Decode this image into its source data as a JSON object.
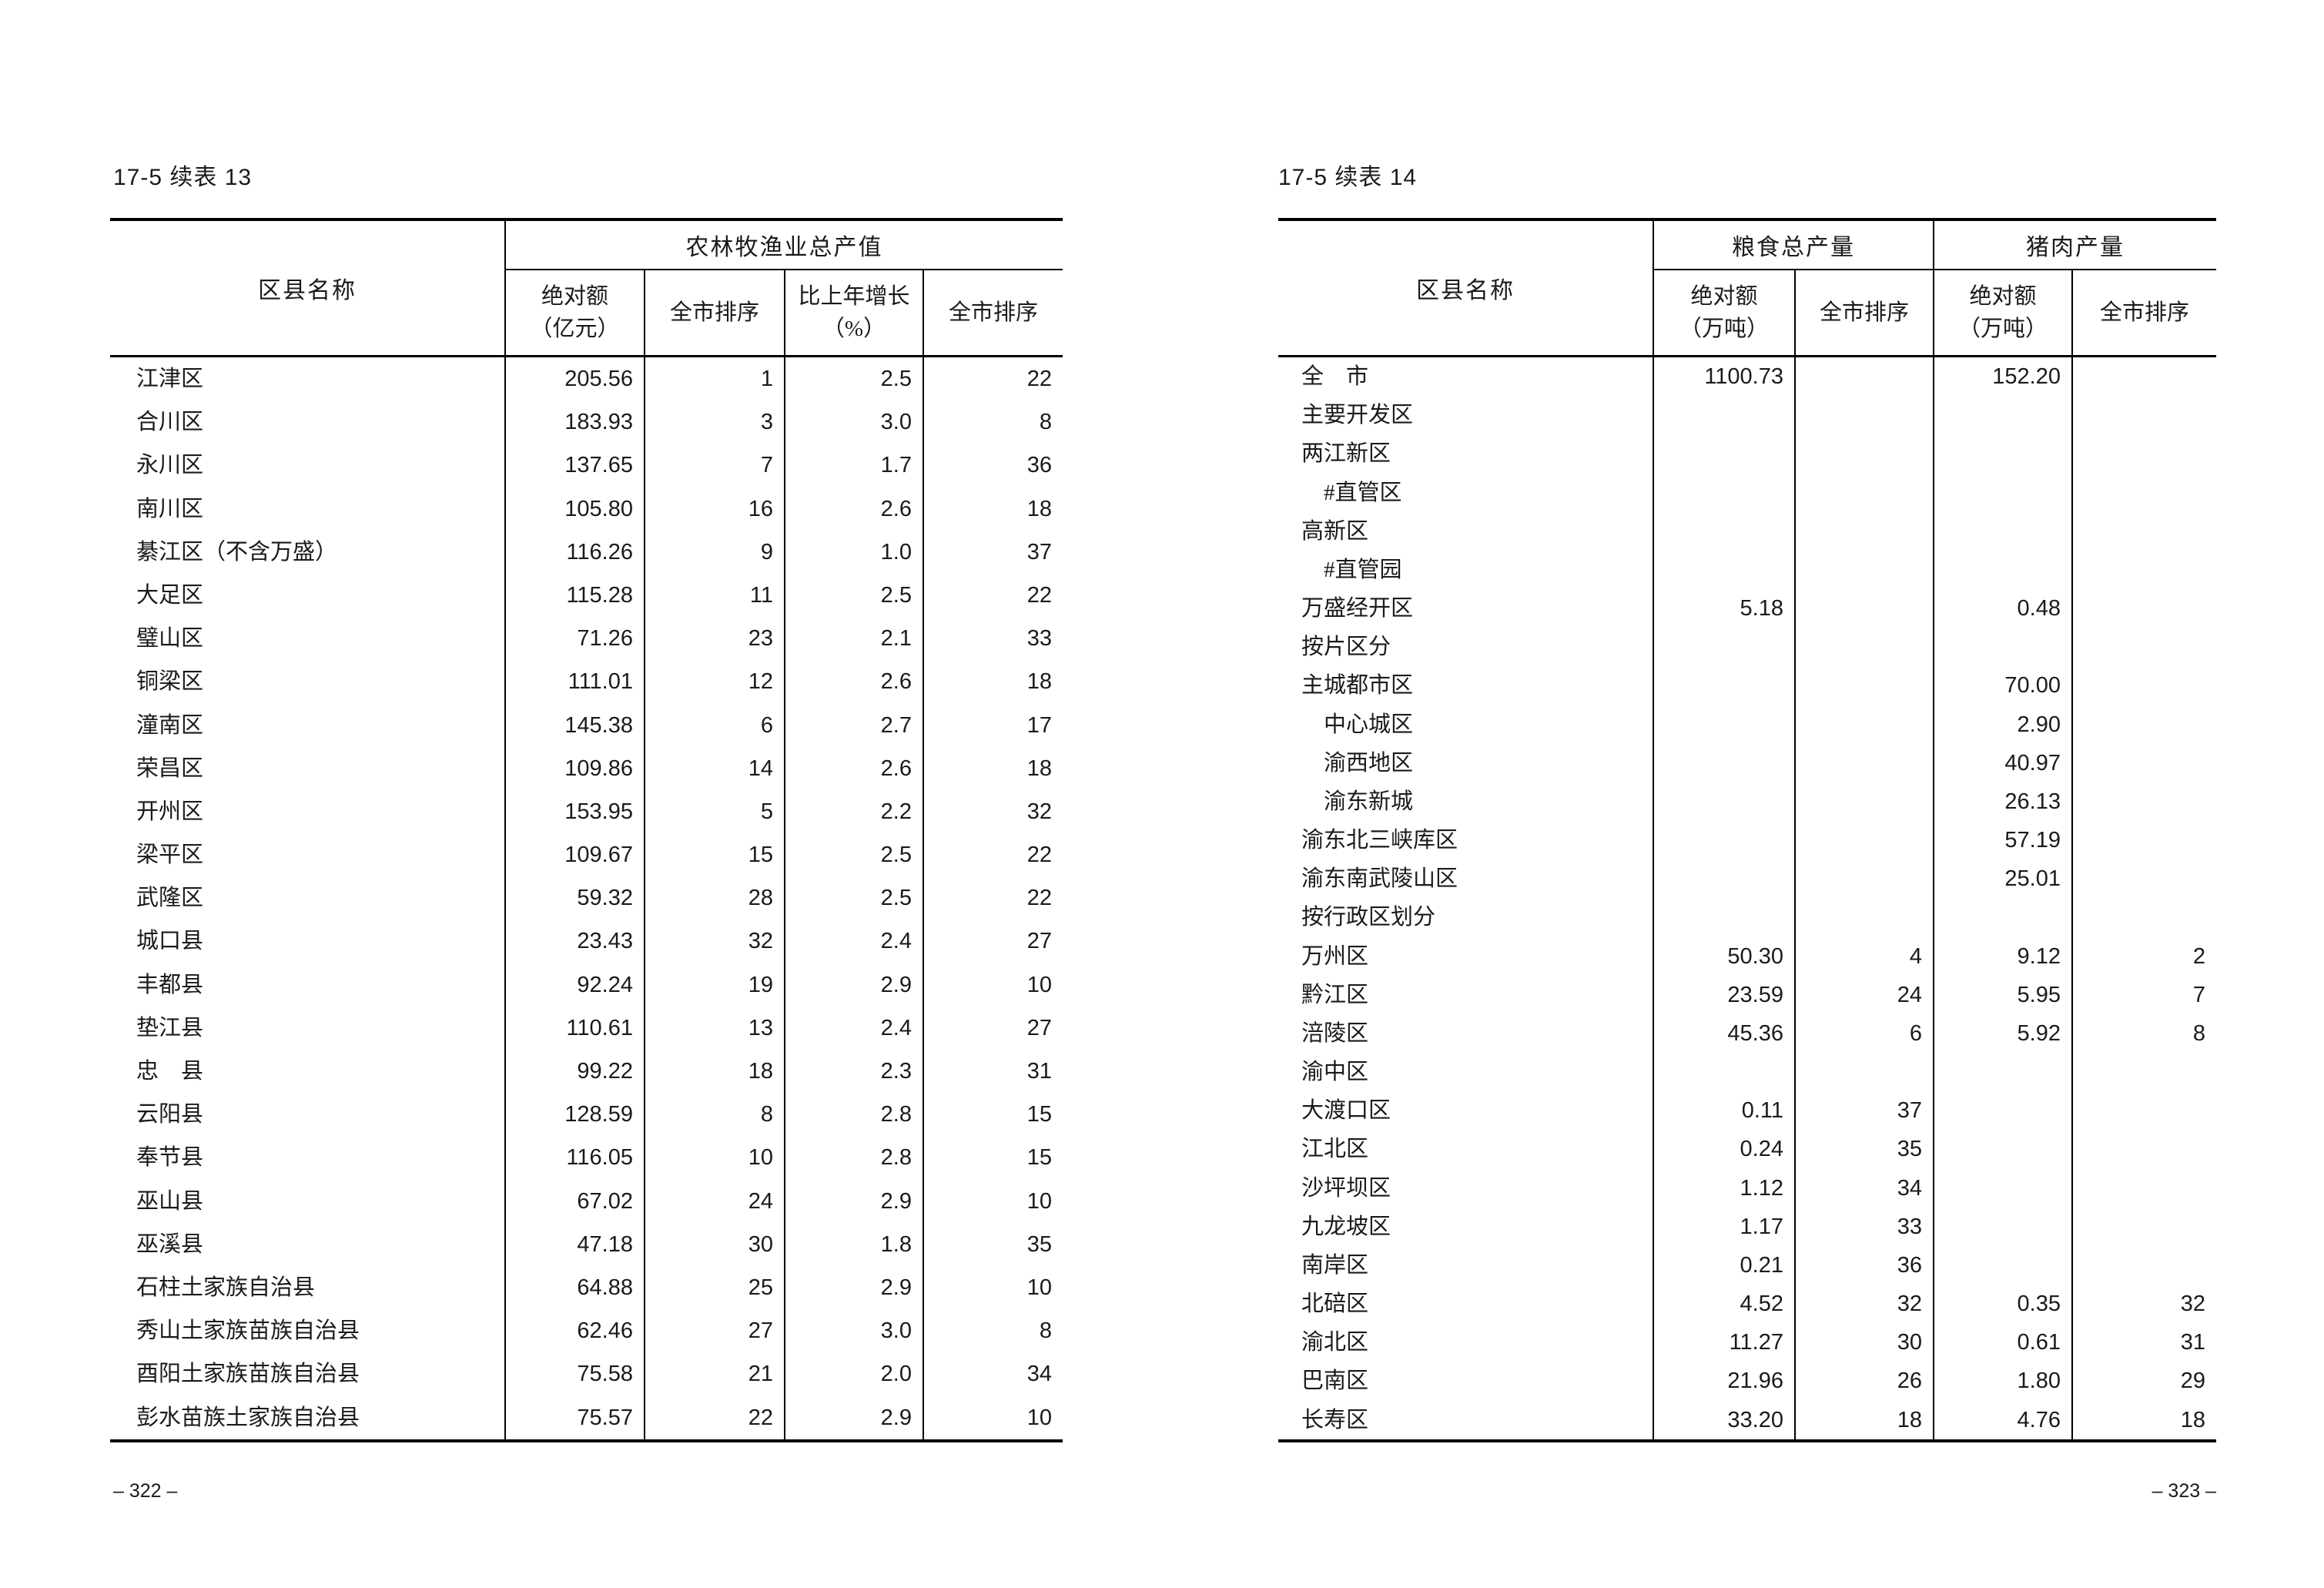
{
  "pages": [
    {
      "table_label": "17-5 续表 13",
      "page_number": "– 322 –",
      "table": {
        "name_header": "区县名称",
        "groups": [
          {
            "label": "农林牧渔业总产值",
            "span": 4
          }
        ],
        "columns": [
          {
            "lines": [
              "绝对额",
              "（亿元）"
            ]
          },
          {
            "lines": [
              "全市排序"
            ]
          },
          {
            "lines": [
              "比上年增长",
              "（%）"
            ]
          },
          {
            "lines": [
              "全市排序"
            ]
          }
        ],
        "rows": [
          {
            "name": "江津区",
            "values": [
              "205.56",
              "1",
              "2.5",
              "22"
            ]
          },
          {
            "name": "合川区",
            "values": [
              "183.93",
              "3",
              "3.0",
              "8"
            ]
          },
          {
            "name": "永川区",
            "values": [
              "137.65",
              "7",
              "1.7",
              "36"
            ]
          },
          {
            "name": "南川区",
            "values": [
              "105.80",
              "16",
              "2.6",
              "18"
            ]
          },
          {
            "name": "綦江区（不含万盛）",
            "values": [
              "116.26",
              "9",
              "1.0",
              "37"
            ]
          },
          {
            "name": "大足区",
            "values": [
              "115.28",
              "11",
              "2.5",
              "22"
            ]
          },
          {
            "name": "璧山区",
            "values": [
              "71.26",
              "23",
              "2.1",
              "33"
            ]
          },
          {
            "name": "铜梁区",
            "values": [
              "111.01",
              "12",
              "2.6",
              "18"
            ]
          },
          {
            "name": "潼南区",
            "values": [
              "145.38",
              "6",
              "2.7",
              "17"
            ]
          },
          {
            "name": "荣昌区",
            "values": [
              "109.86",
              "14",
              "2.6",
              "18"
            ]
          },
          {
            "name": "开州区",
            "values": [
              "153.95",
              "5",
              "2.2",
              "32"
            ]
          },
          {
            "name": "梁平区",
            "values": [
              "109.67",
              "15",
              "2.5",
              "22"
            ]
          },
          {
            "name": "武隆区",
            "values": [
              "59.32",
              "28",
              "2.5",
              "22"
            ]
          },
          {
            "name": "城口县",
            "values": [
              "23.43",
              "32",
              "2.4",
              "27"
            ]
          },
          {
            "name": "丰都县",
            "values": [
              "92.24",
              "19",
              "2.9",
              "10"
            ]
          },
          {
            "name": "垫江县",
            "values": [
              "110.61",
              "13",
              "2.4",
              "27"
            ]
          },
          {
            "name": "忠　县",
            "values": [
              "99.22",
              "18",
              "2.3",
              "31"
            ]
          },
          {
            "name": "云阳县",
            "values": [
              "128.59",
              "8",
              "2.8",
              "15"
            ]
          },
          {
            "name": "奉节县",
            "values": [
              "116.05",
              "10",
              "2.8",
              "15"
            ]
          },
          {
            "name": "巫山县",
            "values": [
              "67.02",
              "24",
              "2.9",
              "10"
            ]
          },
          {
            "name": "巫溪县",
            "values": [
              "47.18",
              "30",
              "1.8",
              "35"
            ]
          },
          {
            "name": "石柱土家族自治县",
            "values": [
              "64.88",
              "25",
              "2.9",
              "10"
            ]
          },
          {
            "name": "秀山土家族苗族自治县",
            "values": [
              "62.46",
              "27",
              "3.0",
              "8"
            ]
          },
          {
            "name": "酉阳土家族苗族自治县",
            "values": [
              "75.58",
              "21",
              "2.0",
              "34"
            ]
          },
          {
            "name": "彭水苗族土家族自治县",
            "values": [
              "75.57",
              "22",
              "2.9",
              "10"
            ]
          }
        ]
      }
    },
    {
      "table_label": "17-5 续表 14",
      "page_number": "– 323 –",
      "table": {
        "name_header": "区县名称",
        "groups": [
          {
            "label": "粮食总产量",
            "span": 2
          },
          {
            "label": "猪肉产量",
            "span": 2
          }
        ],
        "columns": [
          {
            "lines": [
              "绝对额",
              "（万吨）"
            ]
          },
          {
            "lines": [
              "全市排序"
            ]
          },
          {
            "lines": [
              "绝对额",
              "（万吨）"
            ]
          },
          {
            "lines": [
              "全市排序"
            ]
          }
        ],
        "rows": [
          {
            "name": "全　市",
            "values": [
              "1100.73",
              "",
              "152.20",
              ""
            ]
          },
          {
            "name": "主要开发区",
            "values": [
              "",
              "",
              "",
              ""
            ]
          },
          {
            "name": "两江新区",
            "values": [
              "",
              "",
              "",
              ""
            ]
          },
          {
            "name": "　#直管区",
            "values": [
              "",
              "",
              "",
              ""
            ]
          },
          {
            "name": "高新区",
            "values": [
              "",
              "",
              "",
              ""
            ]
          },
          {
            "name": "　#直管园",
            "values": [
              "",
              "",
              "",
              ""
            ]
          },
          {
            "name": "万盛经开区",
            "values": [
              "5.18",
              "",
              "0.48",
              ""
            ]
          },
          {
            "name": "按片区分",
            "values": [
              "",
              "",
              "",
              ""
            ]
          },
          {
            "name": "主城都市区",
            "values": [
              "",
              "",
              "70.00",
              ""
            ]
          },
          {
            "name": "　中心城区",
            "values": [
              "",
              "",
              "2.90",
              ""
            ]
          },
          {
            "name": "　渝西地区",
            "values": [
              "",
              "",
              "40.97",
              ""
            ]
          },
          {
            "name": "　渝东新城",
            "values": [
              "",
              "",
              "26.13",
              ""
            ]
          },
          {
            "name": "渝东北三峡库区",
            "values": [
              "",
              "",
              "57.19",
              ""
            ]
          },
          {
            "name": "渝东南武陵山区",
            "values": [
              "",
              "",
              "25.01",
              ""
            ]
          },
          {
            "name": "按行政区划分",
            "values": [
              "",
              "",
              "",
              ""
            ]
          },
          {
            "name": "万州区",
            "values": [
              "50.30",
              "4",
              "9.12",
              "2"
            ]
          },
          {
            "name": "黔江区",
            "values": [
              "23.59",
              "24",
              "5.95",
              "7"
            ]
          },
          {
            "name": "涪陵区",
            "values": [
              "45.36",
              "6",
              "5.92",
              "8"
            ]
          },
          {
            "name": "渝中区",
            "values": [
              "",
              "",
              "",
              ""
            ]
          },
          {
            "name": "大渡口区",
            "values": [
              "0.11",
              "37",
              "",
              ""
            ]
          },
          {
            "name": "江北区",
            "values": [
              "0.24",
              "35",
              "",
              ""
            ]
          },
          {
            "name": "沙坪坝区",
            "values": [
              "1.12",
              "34",
              "",
              ""
            ]
          },
          {
            "name": "九龙坡区",
            "values": [
              "1.17",
              "33",
              "",
              ""
            ]
          },
          {
            "name": "南岸区",
            "values": [
              "0.21",
              "36",
              "",
              ""
            ]
          },
          {
            "name": "北碚区",
            "values": [
              "4.52",
              "32",
              "0.35",
              "32"
            ]
          },
          {
            "name": "渝北区",
            "values": [
              "11.27",
              "30",
              "0.61",
              "31"
            ]
          },
          {
            "name": "巴南区",
            "values": [
              "21.96",
              "26",
              "1.80",
              "29"
            ]
          },
          {
            "name": "长寿区",
            "values": [
              "33.20",
              "18",
              "4.76",
              "18"
            ]
          }
        ]
      }
    }
  ]
}
